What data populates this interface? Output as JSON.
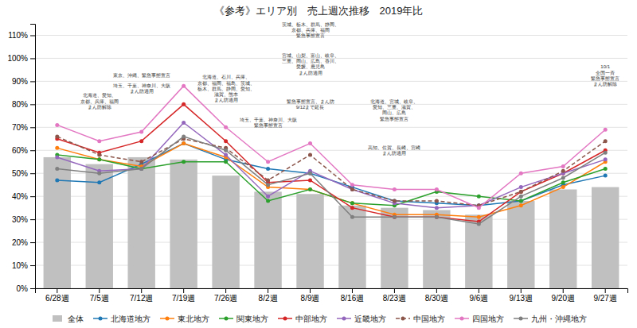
{
  "chart_data": {
    "type": "bar",
    "title": "《参考》エリア別　売上週次推移　2019年比",
    "categories": [
      "6/28週",
      "7/5週",
      "7/12週",
      "7/19週",
      "7/26週",
      "8/2週",
      "8/9週",
      "8/16週",
      "8/23週",
      "8/30週",
      "9/6週",
      "9/13週",
      "9/20週",
      "9/27週"
    ],
    "series": [
      {
        "name": "全体",
        "type": "bar",
        "color": "#c0c0c0",
        "values": [
          0.57,
          0.54,
          0.57,
          0.56,
          0.49,
          0.42,
          0.41,
          0.36,
          0.35,
          0.34,
          0.32,
          0.38,
          0.43,
          0.44
        ]
      },
      {
        "name": "北海道地方",
        "type": "line",
        "marker": "circle",
        "line_style": "solid",
        "values": [
          0.47,
          0.46,
          0.54,
          0.63,
          0.56,
          0.52,
          0.5,
          0.44,
          0.38,
          0.37,
          0.36,
          0.38,
          0.45,
          0.49
        ]
      },
      {
        "name": "東北地方",
        "type": "line",
        "marker": "circle",
        "line_style": "solid",
        "values": [
          0.61,
          0.56,
          0.53,
          0.63,
          0.57,
          0.44,
          0.43,
          0.37,
          0.32,
          0.32,
          0.31,
          0.36,
          0.44,
          0.55
        ]
      },
      {
        "name": "関東地方",
        "type": "line",
        "marker": "circle",
        "line_style": "solid",
        "values": [
          0.58,
          0.56,
          0.52,
          0.55,
          0.55,
          0.38,
          0.43,
          0.37,
          0.36,
          0.42,
          0.4,
          0.38,
          0.46,
          0.52
        ]
      },
      {
        "name": "中部地方",
        "type": "line",
        "marker": "circle",
        "line_style": "solid",
        "values": [
          0.65,
          0.59,
          0.64,
          0.8,
          0.64,
          0.46,
          0.47,
          0.35,
          0.31,
          0.31,
          0.29,
          0.42,
          0.5,
          0.6
        ]
      },
      {
        "name": "近畿地方",
        "type": "line",
        "marker": "circle",
        "line_style": "solid",
        "values": [
          0.57,
          0.51,
          0.52,
          0.72,
          0.58,
          0.4,
          0.51,
          0.43,
          0.37,
          0.35,
          0.36,
          0.44,
          0.5,
          0.56
        ]
      },
      {
        "name": "中国地方",
        "type": "line",
        "marker": "circle",
        "line_style": "dashed",
        "values": [
          0.66,
          0.58,
          0.55,
          0.65,
          0.61,
          0.47,
          0.58,
          0.43,
          0.38,
          0.38,
          0.36,
          0.42,
          0.51,
          0.64
        ]
      },
      {
        "name": "四国地方",
        "type": "line",
        "marker": "circle",
        "line_style": "solid",
        "values": [
          0.71,
          0.64,
          0.68,
          0.88,
          0.7,
          0.55,
          0.63,
          0.45,
          0.43,
          0.43,
          0.35,
          0.5,
          0.53,
          0.69
        ]
      },
      {
        "name": "九州・沖縄地方",
        "type": "line",
        "marker": "circle",
        "line_style": "solid",
        "values": [
          0.52,
          0.5,
          0.52,
          0.66,
          0.6,
          0.45,
          0.5,
          0.31,
          0.31,
          0.31,
          0.28,
          0.4,
          0.48,
          0.59
        ]
      }
    ],
    "annotations": [
      {
        "x": "7/5週",
        "y": 0.775,
        "text": "北海道、愛知、\n京都、兵庫、福岡\nまん防解除"
      },
      {
        "x": "7/12週",
        "y": 0.915,
        "text": "東京、沖縄、緊急事態宣言"
      },
      {
        "x": "7/12週",
        "y": 0.845,
        "text": "埼玉、千葉、神奈川、大阪\nまん防適用"
      },
      {
        "x": "7/26週",
        "y": 0.805,
        "text": "北海道、石川、兵庫、\n京都、福岡、福島、茨城、\n栃木、群馬、静岡、愛知、\n滋賀、熊本\nまん防適用"
      },
      {
        "x": "8/2週",
        "y": 0.695,
        "text": "埼玉、千葉、神奈川、大阪\n緊急事態宣言"
      },
      {
        "x": "8/9週",
        "y": 1.085,
        "text": "茨城、栃木、群馬、静岡、\n京都、兵庫、福岡\n緊急事態宣言"
      },
      {
        "x": "8/9週",
        "y": 0.925,
        "text": "宮城、山梨、富山、岐阜、\n三重、岡山、広島、香川、\n愛媛、鹿児島\nまん防適用"
      },
      {
        "x": "8/9週",
        "y": 0.775,
        "text": "緊急事態宣言、まん防\n9/12まで延長"
      },
      {
        "x": "8/23週",
        "y": 0.725,
        "text": "北海道、宮城、岐阜、\n愛知、三重、滋賀、\n岡山、広島\n緊急事態宣言"
      },
      {
        "x": "8/23週",
        "y": 0.575,
        "text": "高知、佐賀、長崎、宮崎\nまん防適用"
      },
      {
        "x": "9/27週",
        "y": 0.875,
        "text": "10/1\n全国一斉\n緊急事態宣言\nまん防解除"
      }
    ],
    "ylim": [
      0,
      1.15
    ],
    "yticks": [
      {
        "value": 0.0,
        "label": "0%"
      },
      {
        "value": 0.1,
        "label": "10%"
      },
      {
        "value": 0.2,
        "label": "20%"
      },
      {
        "value": 0.3,
        "label": "30%"
      },
      {
        "value": 0.4,
        "label": "40%"
      },
      {
        "value": 0.5,
        "label": "50%"
      },
      {
        "value": 0.6,
        "label": "60%"
      },
      {
        "value": 0.7,
        "label": "70%"
      },
      {
        "value": 0.8,
        "label": "80%"
      },
      {
        "value": 0.9,
        "label": "90%"
      },
      {
        "value": 1.0,
        "label": "100%"
      },
      {
        "value": 1.1,
        "label": "110%"
      }
    ],
    "grid": true,
    "legend": "bottom"
  }
}
